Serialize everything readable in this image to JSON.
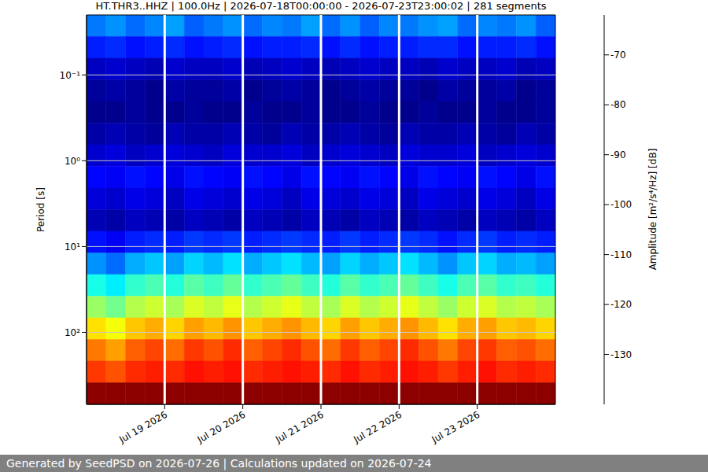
{
  "chart_data": {
    "type": "heatmap",
    "title": "HT.THR3..HHZ | 100.0Hz | 2026-07-18T00:00:00 - 2026-07-23T23:00:02 | 281 segments",
    "ylabel": "Period [s]",
    "log": "y",
    "grid": true,
    "xlim": [
      18,
      24
    ],
    "xticks": [
      {
        "value": 19,
        "label": "Jul 19 2026"
      },
      {
        "value": 20,
        "label": "Jul 20 2026"
      },
      {
        "value": 21,
        "label": "Jul 21 2026"
      },
      {
        "value": 22,
        "label": "Jul 22 2026"
      },
      {
        "value": 23,
        "label": "Jul 23 2026"
      }
    ],
    "ylim": [
      0.02,
      690
    ],
    "yticks": [
      {
        "value": 0.1,
        "label": "10⁻¹"
      },
      {
        "value": 1,
        "label": "10⁰"
      },
      {
        "value": 10,
        "label": "10¹"
      },
      {
        "value": 100,
        "label": "10²"
      }
    ],
    "x_edges": [
      18,
      18.25,
      18.5,
      18.75,
      19,
      19.25,
      19.5,
      19.75,
      20,
      20.25,
      20.5,
      20.75,
      21,
      21.25,
      21.5,
      21.75,
      22,
      22.25,
      22.5,
      22.75,
      23,
      23.25,
      23.5,
      23.75,
      24
    ],
    "y_edges": [
      0.02,
      0.0357,
      0.0639,
      0.114,
      0.204,
      0.364,
      0.651,
      1.16,
      2.08,
      3.71,
      6.64,
      11.9,
      21.2,
      37.9,
      67.7,
      121,
      216,
      386,
      690
    ],
    "cells": [
      [
        -121,
        -119,
        -122,
        -120,
        -118,
        -123,
        -121,
        -119,
        -122,
        -120,
        -121,
        -118,
        -122,
        -119,
        -123,
        -120,
        -121,
        -119,
        -118,
        -122,
        -120,
        -121,
        -119,
        -123
      ],
      [
        -128,
        -127,
        -129,
        -128,
        -127,
        -129,
        -128,
        -127,
        -129,
        -128,
        -128,
        -127,
        -129,
        -127,
        -129,
        -128,
        -128,
        -127,
        -127,
        -129,
        -128,
        -128,
        -127,
        -129
      ],
      [
        -135,
        -134,
        -135,
        -136,
        -134,
        -135,
        -135,
        -134,
        -136,
        -135,
        -134,
        -135,
        -136,
        -135,
        -134,
        -135,
        -135,
        -136,
        -134,
        -135,
        -135,
        -134,
        -136,
        -135
      ],
      [
        -138,
        -137,
        -138,
        -139,
        -137,
        -138,
        -138,
        -137,
        -139,
        -138,
        -137,
        -138,
        -139,
        -138,
        -137,
        -138,
        -138,
        -139,
        -137,
        -138,
        -138,
        -137,
        -139,
        -138
      ],
      [
        -139,
        -139,
        -138,
        -139,
        -139,
        -138,
        -139,
        -139,
        -138,
        -139,
        -139,
        -138,
        -139,
        -139,
        -138,
        -139,
        -139,
        -138,
        -139,
        -139,
        -138,
        -139,
        -139,
        -138
      ],
      [
        -137,
        -136,
        -137,
        -138,
        -136,
        -137,
        -137,
        -136,
        -137,
        -138,
        -136,
        -137,
        -137,
        -136,
        -137,
        -138,
        -136,
        -137,
        -137,
        -136,
        -137,
        -138,
        -136,
        -137
      ],
      [
        -134,
        -133,
        -135,
        -134,
        -133,
        -134,
        -135,
        -133,
        -134,
        -134,
        -133,
        -135,
        -134,
        -133,
        -134,
        -135,
        -133,
        -134,
        -134,
        -133,
        -135,
        -134,
        -133,
        -134
      ],
      [
        -130,
        -131,
        -129,
        -130,
        -132,
        -129,
        -130,
        -131,
        -129,
        -130,
        -132,
        -129,
        -130,
        -131,
        -129,
        -130,
        -132,
        -129,
        -130,
        -131,
        -129,
        -130,
        -132,
        -129
      ],
      [
        -133,
        -134,
        -132,
        -133,
        -135,
        -132,
        -133,
        -134,
        -132,
        -133,
        -135,
        -132,
        -133,
        -134,
        -132,
        -133,
        -135,
        -132,
        -133,
        -134,
        -132,
        -133,
        -135,
        -132
      ],
      [
        -136,
        -137,
        -135,
        -136,
        -137,
        -135,
        -136,
        -137,
        -135,
        -136,
        -137,
        -135,
        -136,
        -137,
        -135,
        -136,
        -137,
        -135,
        -136,
        -137,
        -135,
        -136,
        -137,
        -135
      ],
      [
        -129,
        -131,
        -128,
        -127,
        -128,
        -126,
        -127,
        -126,
        -128,
        -127,
        -126,
        -127,
        -128,
        -126,
        -128,
        -127,
        -126,
        -127,
        -129,
        -127,
        -126,
        -128,
        -127,
        -128
      ],
      [
        -119,
        -122,
        -117,
        -115,
        -118,
        -114,
        -116,
        -113,
        -117,
        -115,
        -113,
        -116,
        -118,
        -114,
        -117,
        -115,
        -113,
        -116,
        -119,
        -115,
        -114,
        -117,
        -116,
        -118
      ],
      [
        -109,
        -112,
        -107,
        -105,
        -108,
        -104,
        -106,
        -103,
        -107,
        -105,
        -103,
        -106,
        -108,
        -104,
        -107,
        -105,
        -103,
        -106,
        -109,
        -105,
        -104,
        -107,
        -106,
        -108
      ],
      [
        -99,
        -102,
        -97,
        -95,
        -98,
        -94,
        -96,
        -93,
        -97,
        -95,
        -93,
        -96,
        -98,
        -94,
        -97,
        -95,
        -93,
        -96,
        -99,
        -95,
        -94,
        -97,
        -96,
        -98
      ],
      [
        -89,
        -92,
        -87,
        -85,
        -88,
        -84,
        -86,
        -83,
        -87,
        -85,
        -83,
        -86,
        -88,
        -84,
        -87,
        -85,
        -83,
        -86,
        -89,
        -85,
        -84,
        -87,
        -86,
        -88
      ],
      [
        -81,
        -84,
        -79,
        -77,
        -80,
        -76,
        -78,
        -75,
        -79,
        -77,
        -75,
        -78,
        -80,
        -76,
        -79,
        -77,
        -75,
        -78,
        -81,
        -77,
        -76,
        -79,
        -78,
        -80
      ],
      [
        -76,
        -78,
        -75,
        -74,
        -75,
        -73,
        -74,
        -73,
        -75,
        -74,
        -73,
        -74,
        -75,
        -73,
        -75,
        -74,
        -73,
        -74,
        -76,
        -74,
        -73,
        -75,
        -74,
        -75
      ],
      [
        -63,
        -63,
        -63,
        -63,
        -63,
        -63,
        -63,
        -63,
        -63,
        -63,
        -63,
        -63,
        -63,
        -63,
        -63,
        -63,
        -63,
        -63,
        -63,
        -63,
        -63,
        -63,
        -63,
        -63
      ]
    ],
    "colorbar": {
      "label": "Amplitude [m²/s⁴/Hz] [dB]",
      "lim": [
        -140,
        -62
      ],
      "ticks": [
        -130,
        -120,
        -110,
        -100,
        -90,
        -80,
        -70
      ]
    }
  },
  "footer": "Generated by SeedPSD on 2026-07-26 | Calculations updated on 2026-07-24"
}
